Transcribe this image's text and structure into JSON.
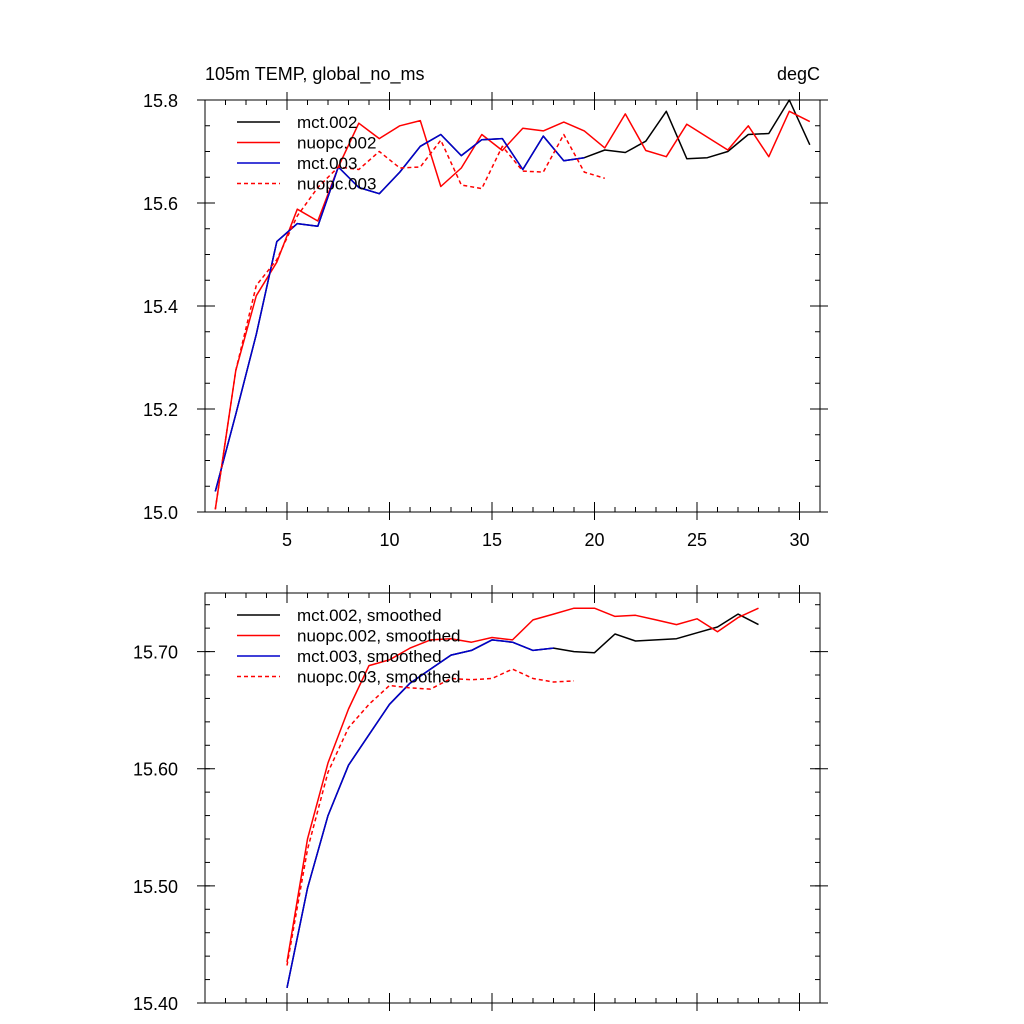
{
  "chart_data": [
    {
      "type": "line",
      "title_left": "105m TEMP, global_no_ms",
      "title_right": "degC",
      "xlim": [
        1,
        31
      ],
      "ylim": [
        15.0,
        15.8
      ],
      "x_ticks": [
        5,
        10,
        15,
        20,
        25,
        30
      ],
      "x_tick_labels": [
        "5",
        "10",
        "15",
        "20",
        "25",
        "30"
      ],
      "y_ticks": [
        15.0,
        15.2,
        15.4,
        15.6,
        15.8
      ],
      "y_tick_labels": [
        "15.0",
        "15.2",
        "15.4",
        "15.6",
        "15.8"
      ],
      "grid": false,
      "legend_position": "top-left",
      "series": [
        {
          "name": "mct.002",
          "color": "#000000",
          "dash": "solid",
          "x": [
            1.5,
            2.5,
            3.5,
            4.5,
            5.5,
            6.5,
            7.5,
            8.5,
            9.5,
            10.5,
            11.5,
            12.5,
            13.5,
            14.5,
            15.5,
            16.5,
            17.5,
            18.5,
            19.5,
            20.5,
            21.5,
            22.5,
            23.5,
            24.5,
            25.5,
            26.5,
            27.5,
            28.5,
            29.5,
            30.5
          ],
          "y": [
            15.04,
            15.19,
            15.345,
            15.525,
            15.56,
            15.555,
            15.67,
            15.63,
            15.618,
            15.66,
            15.71,
            15.733,
            15.692,
            15.723,
            15.725,
            15.665,
            15.73,
            15.682,
            15.688,
            15.703,
            15.698,
            15.72,
            15.778,
            15.686,
            15.688,
            15.7,
            15.733,
            15.735,
            15.8,
            15.713
          ]
        },
        {
          "name": "nuopc.002",
          "color": "#ff0000",
          "dash": "solid",
          "x": [
            1.5,
            2.5,
            3.5,
            4.5,
            5.5,
            6.5,
            7.5,
            8.5,
            9.5,
            10.5,
            11.5,
            12.5,
            13.5,
            14.5,
            15.5,
            16.5,
            17.5,
            18.5,
            19.5,
            20.5,
            21.5,
            22.5,
            23.5,
            24.5,
            25.5,
            26.5,
            27.5,
            28.5,
            29.5,
            30.5
          ],
          "y": [
            15.005,
            15.275,
            15.42,
            15.485,
            15.588,
            15.565,
            15.67,
            15.755,
            15.725,
            15.75,
            15.76,
            15.632,
            15.668,
            15.733,
            15.702,
            15.745,
            15.74,
            15.757,
            15.74,
            15.707,
            15.773,
            15.702,
            15.69,
            15.753,
            15.728,
            15.703,
            15.75,
            15.69,
            15.778,
            15.758
          ]
        },
        {
          "name": "mct.003",
          "color": "#0000cc",
          "dash": "solid",
          "x": [
            1.5,
            2.5,
            3.5,
            4.5,
            5.5,
            6.5,
            7.5,
            8.5,
            9.5,
            10.5,
            11.5,
            12.5,
            13.5,
            14.5,
            15.5,
            16.5,
            17.5,
            18.5,
            19.5
          ],
          "y": [
            15.04,
            15.19,
            15.345,
            15.525,
            15.56,
            15.555,
            15.67,
            15.63,
            15.618,
            15.66,
            15.71,
            15.733,
            15.692,
            15.723,
            15.725,
            15.665,
            15.73,
            15.682,
            15.688
          ]
        },
        {
          "name": "nuopc.003",
          "color": "#ff0000",
          "dash": "dashed",
          "x": [
            1.5,
            2.5,
            3.5,
            4.5,
            5.5,
            6.5,
            7.5,
            8.5,
            9.5,
            10.5,
            11.5,
            12.5,
            13.5,
            14.5,
            15.5,
            16.5,
            17.5,
            18.5,
            19.5,
            20.5
          ],
          "y": [
            15.005,
            15.275,
            15.44,
            15.49,
            15.575,
            15.63,
            15.67,
            15.665,
            15.7,
            15.668,
            15.67,
            15.722,
            15.635,
            15.628,
            15.71,
            15.662,
            15.66,
            15.733,
            15.66,
            15.648
          ]
        }
      ]
    },
    {
      "type": "line",
      "xlim": [
        1,
        31
      ],
      "ylim": [
        15.4,
        15.75
      ],
      "x_ticks": [
        5,
        10,
        15,
        20,
        25,
        30
      ],
      "y_ticks": [
        15.4,
        15.5,
        15.6,
        15.7
      ],
      "y_tick_labels": [
        "15.40",
        "15.50",
        "15.60",
        "15.70"
      ],
      "grid": false,
      "legend_position": "top-left",
      "series": [
        {
          "name": "mct.002, smoothed",
          "color": "#000000",
          "dash": "solid",
          "x": [
            5,
            6,
            7,
            8,
            9,
            10,
            11,
            12,
            13,
            14,
            15,
            16,
            17,
            18,
            19,
            20,
            21,
            22,
            23,
            24,
            25,
            26,
            27,
            28
          ],
          "y": [
            15.413,
            15.498,
            15.56,
            15.603,
            15.629,
            15.655,
            15.673,
            15.685,
            15.697,
            15.701,
            15.71,
            15.708,
            15.701,
            15.703,
            15.7,
            15.699,
            15.715,
            15.709,
            15.71,
            15.711,
            15.716,
            15.721,
            15.732,
            15.723
          ]
        },
        {
          "name": "nuopc.002, smoothed",
          "color": "#ff0000",
          "dash": "solid",
          "x": [
            5,
            6,
            7,
            8,
            9,
            10,
            11,
            12,
            13,
            14,
            15,
            16,
            17,
            18,
            19,
            20,
            21,
            22,
            23,
            24,
            25,
            26,
            27,
            28
          ],
          "y": [
            15.435,
            15.54,
            15.605,
            15.651,
            15.688,
            15.693,
            15.703,
            15.71,
            15.711,
            15.708,
            15.712,
            15.71,
            15.727,
            15.732,
            15.737,
            15.737,
            15.73,
            15.731,
            15.727,
            15.723,
            15.728,
            15.717,
            15.729,
            15.737
          ]
        },
        {
          "name": "mct.003, smoothed",
          "color": "#0000cc",
          "dash": "solid",
          "x": [
            5,
            6,
            7,
            8,
            9,
            10,
            11,
            12,
            13,
            14,
            15,
            16,
            17,
            18
          ],
          "y": [
            15.413,
            15.498,
            15.56,
            15.603,
            15.629,
            15.655,
            15.673,
            15.685,
            15.697,
            15.701,
            15.71,
            15.708,
            15.701,
            15.703
          ]
        },
        {
          "name": "nuopc.003, smoothed",
          "color": "#ff0000",
          "dash": "dashed",
          "x": [
            5,
            6,
            7,
            8,
            9,
            10,
            11,
            12,
            13,
            14,
            15,
            16,
            17,
            18,
            19
          ],
          "y": [
            15.432,
            15.531,
            15.597,
            15.635,
            15.655,
            15.671,
            15.669,
            15.668,
            15.677,
            15.676,
            15.677,
            15.685,
            15.677,
            15.674,
            15.675
          ]
        }
      ]
    }
  ]
}
